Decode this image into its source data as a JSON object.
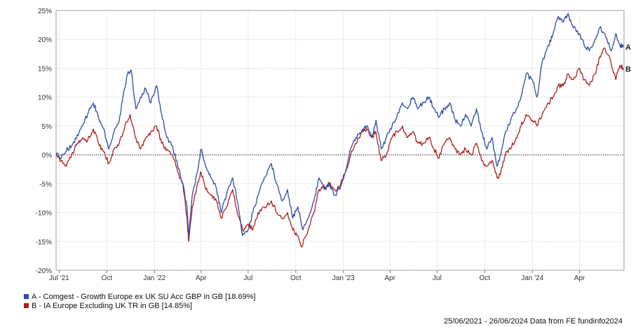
{
  "chart_data": {
    "type": "line",
    "date_range": [
      "2021-06-25",
      "2024-06-26"
    ],
    "xlim": [
      "2021-06-25",
      "2024-06-26"
    ],
    "ylim": [
      -20,
      25
    ],
    "y_ticks": [
      25,
      20,
      15,
      10,
      5,
      0,
      -5,
      -10,
      -15,
      -20
    ],
    "y_tick_labels": [
      "25%",
      "20%",
      "15%",
      "10%",
      "5%",
      "0%",
      "-5%",
      "-10%",
      "-15%",
      "-20%"
    ],
    "x_ticks": [
      {
        "date": "2021-07-01",
        "label": "Jul '21"
      },
      {
        "date": "2021-10-01",
        "label": "Oct"
      },
      {
        "date": "2022-01-01",
        "label": "Jan '22"
      },
      {
        "date": "2022-04-01",
        "label": "Apr"
      },
      {
        "date": "2022-07-01",
        "label": "Jul"
      },
      {
        "date": "2022-10-01",
        "label": "Oct"
      },
      {
        "date": "2023-01-01",
        "label": "Jan '23"
      },
      {
        "date": "2023-04-01",
        "label": "Apr"
      },
      {
        "date": "2023-07-01",
        "label": "Jul"
      },
      {
        "date": "2023-10-01",
        "label": "Oct"
      },
      {
        "date": "2024-01-01",
        "label": "Jan '24"
      },
      {
        "date": "2024-04-01",
        "label": "Apr"
      }
    ],
    "grid": true,
    "zero_line": "dotted",
    "series": [
      {
        "name": "A - Comgest - Growth Europe ex UK SU Acc GBP in GB [18.69%]",
        "end_label": "A",
        "color": "#2b4ba8",
        "points": [
          [
            "2021-06-25",
            0
          ],
          [
            "2021-07-05",
            -0.5
          ],
          [
            "2021-07-15",
            0.8
          ],
          [
            "2021-07-25",
            1.5
          ],
          [
            "2021-08-05",
            3.5
          ],
          [
            "2021-08-15",
            5
          ],
          [
            "2021-08-25",
            7
          ],
          [
            "2021-09-05",
            9
          ],
          [
            "2021-09-15",
            6.5
          ],
          [
            "2021-09-25",
            4.5
          ],
          [
            "2021-10-05",
            1
          ],
          [
            "2021-10-15",
            4
          ],
          [
            "2021-10-25",
            6
          ],
          [
            "2021-11-01",
            10
          ],
          [
            "2021-11-10",
            14
          ],
          [
            "2021-11-17",
            14.7
          ],
          [
            "2021-11-26",
            8
          ],
          [
            "2021-12-05",
            10
          ],
          [
            "2021-12-15",
            11.5
          ],
          [
            "2021-12-25",
            9
          ],
          [
            "2022-01-05",
            12
          ],
          [
            "2022-01-15",
            7
          ],
          [
            "2022-01-25",
            3
          ],
          [
            "2022-02-05",
            1.5
          ],
          [
            "2022-02-15",
            -2
          ],
          [
            "2022-02-25",
            -5
          ],
          [
            "2022-03-05",
            -9
          ],
          [
            "2022-03-08",
            -14
          ],
          [
            "2022-03-15",
            -7
          ],
          [
            "2022-03-25",
            -3
          ],
          [
            "2022-04-01",
            1
          ],
          [
            "2022-04-10",
            -2
          ],
          [
            "2022-04-20",
            -4
          ],
          [
            "2022-05-01",
            -6
          ],
          [
            "2022-05-10",
            -10
          ],
          [
            "2022-05-20",
            -7
          ],
          [
            "2022-06-01",
            -4
          ],
          [
            "2022-06-10",
            -8
          ],
          [
            "2022-06-20",
            -14
          ],
          [
            "2022-07-01",
            -13
          ],
          [
            "2022-07-10",
            -10
          ],
          [
            "2022-07-20",
            -7
          ],
          [
            "2022-08-01",
            -4
          ],
          [
            "2022-08-15",
            -1.5
          ],
          [
            "2022-08-25",
            -5
          ],
          [
            "2022-09-05",
            -8
          ],
          [
            "2022-09-15",
            -6
          ],
          [
            "2022-09-25",
            -11
          ],
          [
            "2022-10-05",
            -9
          ],
          [
            "2022-10-15",
            -13
          ],
          [
            "2022-10-25",
            -11
          ],
          [
            "2022-11-05",
            -8
          ],
          [
            "2022-11-15",
            -4
          ],
          [
            "2022-11-25",
            -6
          ],
          [
            "2022-12-05",
            -5
          ],
          [
            "2022-12-15",
            -7
          ],
          [
            "2022-12-25",
            -6
          ],
          [
            "2023-01-05",
            -3
          ],
          [
            "2023-01-15",
            1
          ],
          [
            "2023-01-25",
            3
          ],
          [
            "2023-02-05",
            4
          ],
          [
            "2023-02-15",
            5
          ],
          [
            "2023-02-25",
            3
          ],
          [
            "2023-03-05",
            6
          ],
          [
            "2023-03-15",
            1
          ],
          [
            "2023-03-25",
            3
          ],
          [
            "2023-04-05",
            5
          ],
          [
            "2023-04-15",
            7
          ],
          [
            "2023-04-25",
            9
          ],
          [
            "2023-05-05",
            8
          ],
          [
            "2023-05-15",
            10
          ],
          [
            "2023-05-25",
            8
          ],
          [
            "2023-06-05",
            9
          ],
          [
            "2023-06-15",
            10
          ],
          [
            "2023-06-25",
            8
          ],
          [
            "2023-07-05",
            6.5
          ],
          [
            "2023-07-15",
            8
          ],
          [
            "2023-07-25",
            9
          ],
          [
            "2023-08-05",
            6
          ],
          [
            "2023-08-15",
            5
          ],
          [
            "2023-08-25",
            7
          ],
          [
            "2023-09-05",
            5
          ],
          [
            "2023-09-15",
            8
          ],
          [
            "2023-09-25",
            4
          ],
          [
            "2023-10-05",
            1
          ],
          [
            "2023-10-15",
            3
          ],
          [
            "2023-10-25",
            -2
          ],
          [
            "2023-11-01",
            0
          ],
          [
            "2023-11-10",
            4
          ],
          [
            "2023-11-20",
            6
          ],
          [
            "2023-12-01",
            8
          ],
          [
            "2023-12-10",
            10
          ],
          [
            "2023-12-20",
            14
          ],
          [
            "2024-01-01",
            13
          ],
          [
            "2024-01-10",
            10
          ],
          [
            "2024-01-20",
            16
          ],
          [
            "2024-02-01",
            19
          ],
          [
            "2024-02-10",
            21
          ],
          [
            "2024-02-20",
            24
          ],
          [
            "2024-03-01",
            23
          ],
          [
            "2024-03-10",
            24.5
          ],
          [
            "2024-03-20",
            22
          ],
          [
            "2024-04-01",
            21
          ],
          [
            "2024-04-10",
            19
          ],
          [
            "2024-04-20",
            18
          ],
          [
            "2024-05-01",
            20
          ],
          [
            "2024-05-10",
            22
          ],
          [
            "2024-05-20",
            21
          ],
          [
            "2024-06-01",
            18
          ],
          [
            "2024-06-10",
            21
          ],
          [
            "2024-06-18",
            19
          ],
          [
            "2024-06-26",
            18.69
          ]
        ]
      },
      {
        "name": "B - IA Europe Excluding UK TR in GB [14.85%]",
        "end_label": "B",
        "color": "#b01c1c",
        "points": [
          [
            "2021-06-25",
            0
          ],
          [
            "2021-07-05",
            -1
          ],
          [
            "2021-07-15",
            -2
          ],
          [
            "2021-07-25",
            0
          ],
          [
            "2021-08-05",
            2
          ],
          [
            "2021-08-15",
            3
          ],
          [
            "2021-08-25",
            2.5
          ],
          [
            "2021-09-05",
            4.5
          ],
          [
            "2021-09-15",
            2
          ],
          [
            "2021-09-25",
            0.5
          ],
          [
            "2021-10-05",
            -1.5
          ],
          [
            "2021-10-15",
            1
          ],
          [
            "2021-10-25",
            2
          ],
          [
            "2021-11-05",
            5
          ],
          [
            "2021-11-15",
            7
          ],
          [
            "2021-11-25",
            3
          ],
          [
            "2021-12-05",
            1
          ],
          [
            "2021-12-15",
            3
          ],
          [
            "2021-12-25",
            4
          ],
          [
            "2022-01-05",
            5
          ],
          [
            "2022-01-15",
            2
          ],
          [
            "2022-01-25",
            1
          ],
          [
            "2022-02-05",
            0
          ],
          [
            "2022-02-15",
            -3
          ],
          [
            "2022-02-25",
            -5
          ],
          [
            "2022-03-05",
            -11
          ],
          [
            "2022-03-08",
            -15
          ],
          [
            "2022-03-15",
            -9
          ],
          [
            "2022-03-25",
            -5
          ],
          [
            "2022-04-01",
            -3
          ],
          [
            "2022-04-10",
            -6
          ],
          [
            "2022-04-20",
            -7
          ],
          [
            "2022-05-01",
            -8
          ],
          [
            "2022-05-10",
            -11
          ],
          [
            "2022-05-20",
            -9
          ],
          [
            "2022-06-01",
            -6
          ],
          [
            "2022-06-10",
            -10
          ],
          [
            "2022-06-20",
            -13
          ],
          [
            "2022-07-01",
            -12
          ],
          [
            "2022-07-10",
            -13
          ],
          [
            "2022-07-20",
            -10
          ],
          [
            "2022-08-01",
            -9
          ],
          [
            "2022-08-15",
            -8
          ],
          [
            "2022-08-25",
            -10
          ],
          [
            "2022-09-05",
            -11
          ],
          [
            "2022-09-15",
            -10
          ],
          [
            "2022-09-25",
            -13
          ],
          [
            "2022-10-05",
            -14
          ],
          [
            "2022-10-12",
            -16
          ],
          [
            "2022-10-25",
            -13
          ],
          [
            "2022-11-05",
            -10
          ],
          [
            "2022-11-15",
            -6
          ],
          [
            "2022-11-25",
            -5.5
          ],
          [
            "2022-12-05",
            -5
          ],
          [
            "2022-12-15",
            -6
          ],
          [
            "2022-12-25",
            -5.5
          ],
          [
            "2023-01-05",
            -3
          ],
          [
            "2023-01-15",
            0
          ],
          [
            "2023-01-25",
            2
          ],
          [
            "2023-02-05",
            4
          ],
          [
            "2023-02-15",
            4.5
          ],
          [
            "2023-02-25",
            3
          ],
          [
            "2023-03-05",
            4
          ],
          [
            "2023-03-15",
            -1
          ],
          [
            "2023-03-25",
            0
          ],
          [
            "2023-04-05",
            3
          ],
          [
            "2023-04-15",
            4
          ],
          [
            "2023-04-25",
            5
          ],
          [
            "2023-05-05",
            3
          ],
          [
            "2023-05-15",
            4
          ],
          [
            "2023-05-25",
            2
          ],
          [
            "2023-06-05",
            2
          ],
          [
            "2023-06-15",
            3
          ],
          [
            "2023-06-25",
            1
          ],
          [
            "2023-07-05",
            -0.5
          ],
          [
            "2023-07-15",
            2
          ],
          [
            "2023-07-25",
            3
          ],
          [
            "2023-08-05",
            1
          ],
          [
            "2023-08-15",
            0
          ],
          [
            "2023-08-25",
            1
          ],
          [
            "2023-09-05",
            0
          ],
          [
            "2023-09-15",
            2
          ],
          [
            "2023-09-25",
            -1
          ],
          [
            "2023-10-05",
            -2
          ],
          [
            "2023-10-15",
            -1
          ],
          [
            "2023-10-25",
            -4
          ],
          [
            "2023-11-01",
            -3
          ],
          [
            "2023-11-10",
            0
          ],
          [
            "2023-11-20",
            1
          ],
          [
            "2023-12-01",
            3
          ],
          [
            "2023-12-10",
            5
          ],
          [
            "2023-12-20",
            7
          ],
          [
            "2024-01-01",
            6
          ],
          [
            "2024-01-10",
            5
          ],
          [
            "2024-01-20",
            7
          ],
          [
            "2024-02-01",
            9
          ],
          [
            "2024-02-10",
            10
          ],
          [
            "2024-02-20",
            12
          ],
          [
            "2024-03-01",
            12
          ],
          [
            "2024-03-10",
            14
          ],
          [
            "2024-03-20",
            13
          ],
          [
            "2024-04-01",
            15
          ],
          [
            "2024-04-10",
            13
          ],
          [
            "2024-04-20",
            12
          ],
          [
            "2024-05-01",
            14
          ],
          [
            "2024-05-10",
            17
          ],
          [
            "2024-05-20",
            18.5
          ],
          [
            "2024-06-01",
            16
          ],
          [
            "2024-06-10",
            13
          ],
          [
            "2024-06-18",
            15.5
          ],
          [
            "2024-06-26",
            14.85
          ]
        ]
      }
    ]
  },
  "footer": {
    "text": "25/06/2021 - 26/06/2024 Data from FE fundinfo2024"
  }
}
